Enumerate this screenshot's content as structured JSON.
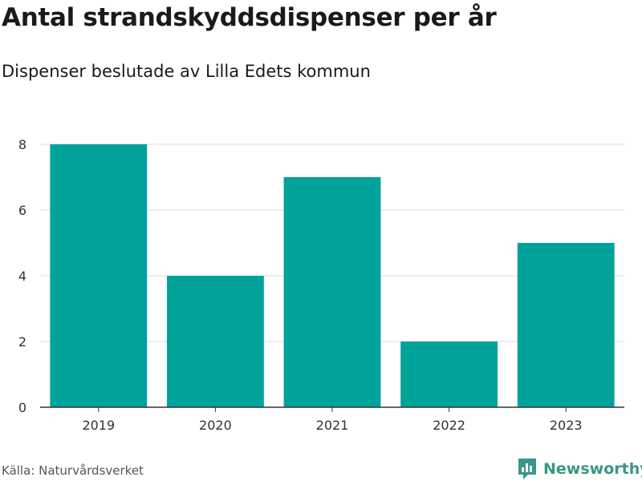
{
  "chart_data": {
    "type": "bar",
    "title": "Antal strandskyddsdispenser per år",
    "subtitle": "Dispenser beslutade av Lilla Edets kommun",
    "categories": [
      "2019",
      "2020",
      "2021",
      "2022",
      "2023"
    ],
    "values": [
      8,
      4,
      7,
      2,
      5
    ],
    "xlabel": "",
    "ylabel": "",
    "ylim": [
      0,
      8
    ],
    "yticks": [
      0,
      2,
      4,
      6,
      8
    ],
    "grid": true,
    "bar_color": "#00A39A"
  },
  "footer": {
    "source": "Källa: Naturvårdsverket",
    "brand": "Newsworthy",
    "brand_icon": "newsworthy-logo-icon",
    "brand_color": "#3a9688"
  }
}
